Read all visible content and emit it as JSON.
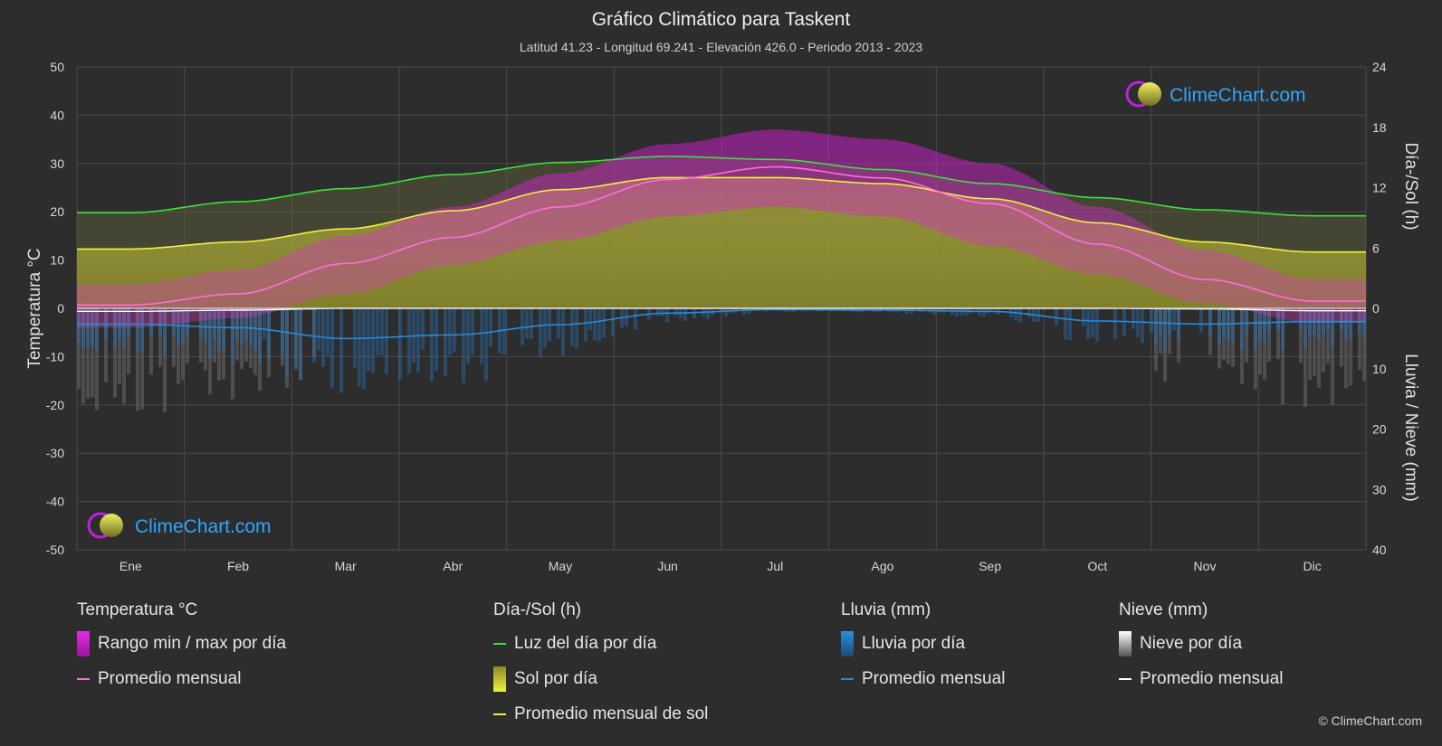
{
  "title": "Gráfico Climático para Taskent",
  "subtitle": "Latitud 41.23 - Longitud 69.241 - Elevación 426.0 - Periodo 2013 - 2023",
  "logo_text": "ClimeChart.com",
  "copyright": "© ClimeChart.com",
  "colors": {
    "background": "#2d2d2d",
    "temp_range": "#d01ad0",
    "temp_avg": "#ff6ee0",
    "daylight": "#3de03d",
    "sunshine_fill": "#b8b832",
    "sunshine_avg": "#f0f040",
    "rain": "#2f8de0",
    "rain_avg": "#2a8ad8",
    "snow": "#9a9a9a",
    "snow_avg": "#ffffff"
  },
  "legend": {
    "temperature": {
      "title": "Temperatura °C",
      "range": "Rango min / max por día",
      "avg": "Promedio mensual"
    },
    "sun": {
      "title": "Día-/Sol (h)",
      "daylight": "Luz del día por día",
      "sunshine": "Sol por día",
      "sun_avg": "Promedio mensual de sol"
    },
    "rain": {
      "title": "Lluvia (mm)",
      "rain": "Lluvia por día",
      "avg": "Promedio mensual"
    },
    "snow": {
      "title": "Nieve (mm)",
      "snow": "Nieve por día",
      "avg": "Promedio mensual"
    }
  },
  "chart_data": {
    "type": "area",
    "months": [
      "Ene",
      "Feb",
      "Mar",
      "Abr",
      "May",
      "Jun",
      "Jul",
      "Ago",
      "Sep",
      "Oct",
      "Nov",
      "Dic"
    ],
    "axes": {
      "left": {
        "label": "Temperatura °C",
        "range": [
          -50,
          50
        ],
        "ticks": [
          50,
          40,
          30,
          20,
          10,
          0,
          -10,
          -20,
          -30,
          -40,
          -50
        ]
      },
      "right_top": {
        "label": "Día-/Sol (h)",
        "range": [
          0,
          24
        ],
        "ticks": [
          24,
          18,
          12,
          6,
          0
        ]
      },
      "right_bottom": {
        "label": "Lluvia / Nieve (mm)",
        "range": [
          0,
          40
        ],
        "ticks": [
          0,
          10,
          20,
          30,
          40
        ]
      }
    },
    "grid": true,
    "series": [
      {
        "name": "Promedio mensual",
        "key": "temp_avg",
        "unit": "°C",
        "values": [
          0.7,
          3.0,
          9.3,
          14.7,
          21.0,
          26.7,
          29.3,
          27.0,
          21.7,
          13.3,
          6.0,
          1.5
        ]
      },
      {
        "name": "Rango min / max por día",
        "key": "temp_max",
        "unit": "°C",
        "values": [
          5,
          8,
          15,
          21,
          28,
          34,
          37,
          35,
          30,
          21,
          12,
          6
        ]
      },
      {
        "key": "temp_min",
        "unit": "°C",
        "values": [
          -4,
          -2,
          3,
          9,
          14,
          19,
          21,
          19,
          13,
          7,
          1,
          -3
        ]
      },
      {
        "name": "Luz del día por día",
        "key": "daylight",
        "unit": "h",
        "values": [
          9.5,
          10.6,
          11.9,
          13.3,
          14.5,
          15.1,
          14.8,
          13.8,
          12.4,
          11.0,
          9.8,
          9.2
        ]
      },
      {
        "name": "Promedio mensual de sol",
        "key": "sunshine",
        "unit": "h",
        "values": [
          5.9,
          6.6,
          7.9,
          9.7,
          11.8,
          13.0,
          13.0,
          12.4,
          10.9,
          8.5,
          6.6,
          5.6
        ]
      },
      {
        "name": "Promedio mensual",
        "key": "rain_avg",
        "unit": "mm",
        "values": [
          2.6,
          3.2,
          5.0,
          4.4,
          2.7,
          0.8,
          0.2,
          0.3,
          0.5,
          2.1,
          2.6,
          2.2
        ]
      },
      {
        "name": "Promedio mensual",
        "key": "snow_avg",
        "unit": "mm",
        "values": [
          0.5,
          0.3,
          0.0,
          0.0,
          0.0,
          0.0,
          0.0,
          0.0,
          0.0,
          0.0,
          0.1,
          0.4
        ]
      }
    ]
  }
}
